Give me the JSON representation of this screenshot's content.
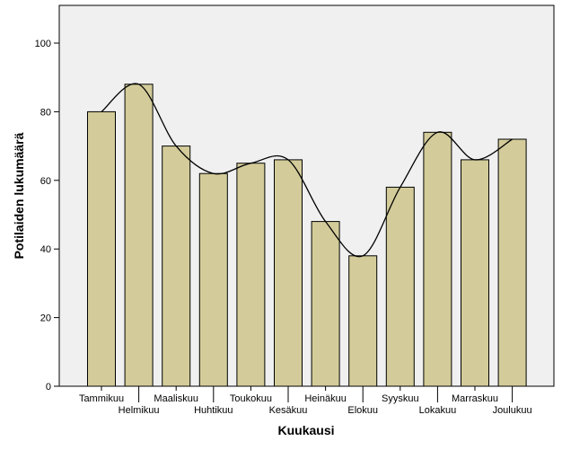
{
  "chart_data": {
    "type": "bar",
    "title": "",
    "xlabel": "Kuukausi",
    "ylabel": "Potilaiden lukumäärä",
    "categories": [
      "Tammikuu",
      "Helmikuu",
      "Maaliskuu",
      "Huhtikuu",
      "Toukokuu",
      "Kesäkuu",
      "Heinäkuu",
      "Elokuu",
      "Syyskuu",
      "Lokakuu",
      "Marraskuu",
      "Joulukuu"
    ],
    "values": [
      80,
      88,
      70,
      62,
      65,
      66,
      48,
      38,
      58,
      74,
      66,
      72
    ],
    "ylim": [
      0,
      110
    ],
    "yticks": [
      0,
      20,
      40,
      60,
      80,
      100
    ],
    "grid": false,
    "smooth_line": true,
    "colors": {
      "bar_fill": "#d3cc9a",
      "bar_stroke": "#000000",
      "plot_background": "#f0f0f0",
      "line": "#000000"
    }
  }
}
